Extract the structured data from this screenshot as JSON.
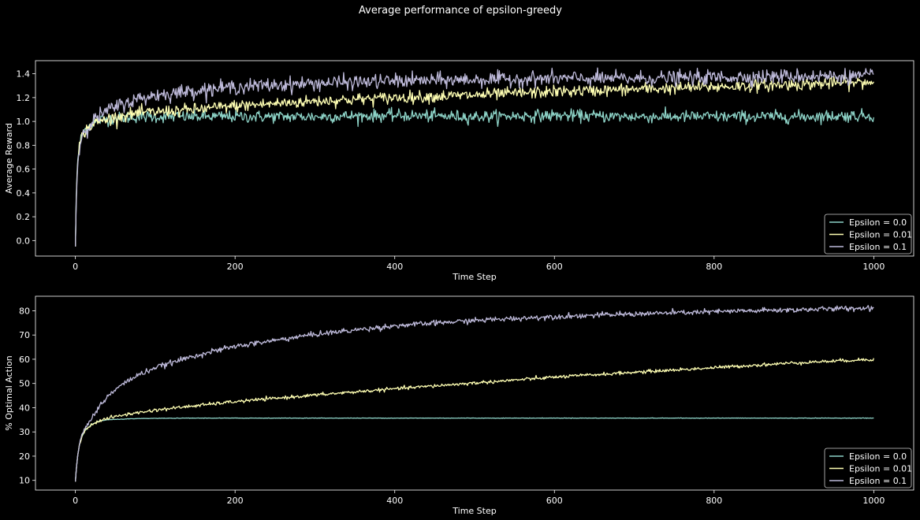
{
  "figure": {
    "suptitle": "Average performance of epsilon-greedy",
    "background": "#000000",
    "foreground": "#ffffff"
  },
  "chart_data": [
    {
      "type": "line",
      "xlabel": "Time Step",
      "ylabel": "Average Reward",
      "xlim": [
        -50,
        1050
      ],
      "ylim": [
        -0.13,
        1.51
      ],
      "xticks": [
        0,
        200,
        400,
        600,
        800,
        1000
      ],
      "xtick_labels": [
        "0",
        "200",
        "400",
        "600",
        "800",
        "1000"
      ],
      "yticks": [
        0.0,
        0.2,
        0.4,
        0.6,
        0.8,
        1.0,
        1.2,
        1.4
      ],
      "ytick_labels": [
        "0.0",
        "0.2",
        "0.4",
        "0.6",
        "0.8",
        "1.0",
        "1.2",
        "1.4"
      ],
      "grid": false,
      "legend_position": "lower-right",
      "series": [
        {
          "name": "Epsilon = 0.0",
          "color": "#8dd3c7",
          "x": [
            0,
            1,
            2,
            3,
            5,
            8,
            12,
            20,
            30,
            40,
            60,
            80,
            100,
            150,
            200,
            300,
            400,
            500,
            600,
            700,
            800,
            900,
            1000
          ],
          "y": [
            -0.05,
            0.35,
            0.55,
            0.68,
            0.8,
            0.88,
            0.93,
            0.98,
            1.01,
            1.02,
            1.03,
            1.04,
            1.04,
            1.04,
            1.04,
            1.04,
            1.05,
            1.04,
            1.05,
            1.04,
            1.04,
            1.04,
            1.05
          ],
          "noise": 0.025
        },
        {
          "name": "Epsilon = 0.01",
          "color": "#ffffb3",
          "x": [
            0,
            1,
            2,
            3,
            5,
            8,
            12,
            20,
            30,
            40,
            60,
            80,
            100,
            150,
            200,
            300,
            400,
            500,
            600,
            700,
            800,
            900,
            1000
          ],
          "y": [
            -0.05,
            0.33,
            0.53,
            0.66,
            0.79,
            0.87,
            0.92,
            0.97,
            1.0,
            1.02,
            1.05,
            1.07,
            1.08,
            1.1,
            1.13,
            1.17,
            1.2,
            1.22,
            1.25,
            1.27,
            1.29,
            1.31,
            1.33
          ],
          "noise": 0.025
        },
        {
          "name": "Epsilon = 0.1",
          "color": "#bebada",
          "x": [
            0,
            1,
            2,
            3,
            5,
            8,
            12,
            20,
            30,
            40,
            60,
            80,
            100,
            150,
            200,
            300,
            400,
            500,
            600,
            700,
            800,
            900,
            1000
          ],
          "y": [
            -0.05,
            0.3,
            0.5,
            0.64,
            0.78,
            0.87,
            0.93,
            0.99,
            1.05,
            1.09,
            1.15,
            1.19,
            1.22,
            1.26,
            1.29,
            1.32,
            1.34,
            1.35,
            1.36,
            1.36,
            1.37,
            1.38,
            1.38
          ],
          "noise": 0.03
        }
      ]
    },
    {
      "type": "line",
      "xlabel": "Time Step",
      "ylabel": "% Optimal Action",
      "xlim": [
        -50,
        1050
      ],
      "ylim": [
        6,
        86
      ],
      "xticks": [
        0,
        200,
        400,
        600,
        800,
        1000
      ],
      "xtick_labels": [
        "0",
        "200",
        "400",
        "600",
        "800",
        "1000"
      ],
      "yticks": [
        10,
        20,
        30,
        40,
        50,
        60,
        70,
        80
      ],
      "ytick_labels": [
        "10",
        "20",
        "30",
        "40",
        "50",
        "60",
        "70",
        "80"
      ],
      "grid": false,
      "legend_position": "lower-right",
      "series": [
        {
          "name": "Epsilon = 0.0",
          "color": "#8dd3c7",
          "x": [
            0,
            1,
            2,
            3,
            5,
            8,
            12,
            20,
            30,
            40,
            60,
            80,
            100,
            150,
            200,
            300,
            400,
            500,
            600,
            700,
            800,
            900,
            1000
          ],
          "y": [
            9.5,
            14,
            17.5,
            20.5,
            24.5,
            28,
            30.5,
            33,
            34.5,
            35,
            35.3,
            35.5,
            35.6,
            35.7,
            35.7,
            35.7,
            35.7,
            35.7,
            35.7,
            35.7,
            35.7,
            35.7,
            35.7
          ],
          "noise": 0.05
        },
        {
          "name": "Epsilon = 0.01",
          "color": "#ffffb3",
          "x": [
            0,
            1,
            2,
            3,
            5,
            8,
            12,
            20,
            30,
            40,
            60,
            80,
            100,
            150,
            200,
            300,
            400,
            500,
            600,
            700,
            800,
            900,
            1000
          ],
          "y": [
            9.5,
            14,
            17.5,
            20.5,
            24.5,
            28,
            30.5,
            33,
            34.6,
            35.6,
            37,
            38,
            39,
            40.8,
            42.5,
            45.2,
            47.8,
            50.2,
            52.6,
            54.6,
            56.5,
            58.5,
            60
          ],
          "noise": 0.35
        },
        {
          "name": "Epsilon = 0.1",
          "color": "#bebada",
          "x": [
            0,
            1,
            2,
            3,
            5,
            8,
            12,
            20,
            30,
            40,
            60,
            80,
            100,
            150,
            200,
            300,
            400,
            500,
            600,
            700,
            800,
            900,
            1000
          ],
          "y": [
            9.5,
            14,
            17.5,
            20.5,
            24.5,
            28.5,
            31.5,
            35.5,
            40.5,
            44.5,
            50,
            53.7,
            56.5,
            61.5,
            65.3,
            70.3,
            73.8,
            76,
            77.6,
            78.7,
            79.6,
            80.4,
            81.2
          ],
          "noise": 0.55
        }
      ]
    }
  ]
}
